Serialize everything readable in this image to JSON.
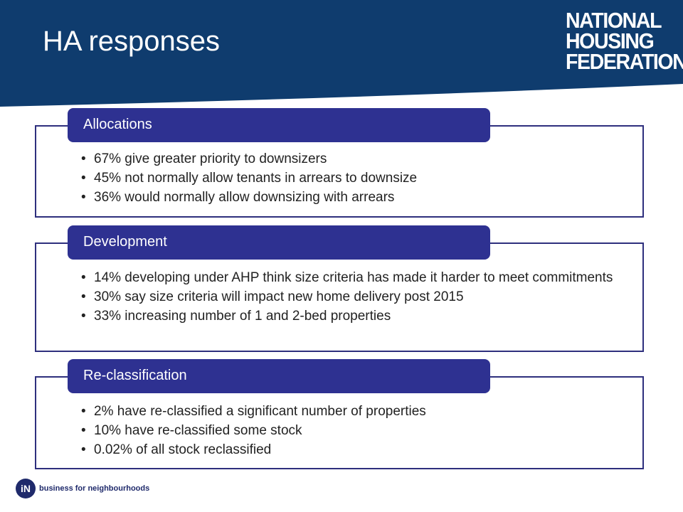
{
  "slide": {
    "title": "HA responses"
  },
  "logo": {
    "line1": "NATIONAL",
    "line2": "HOUSING",
    "line3": "FEDERATION"
  },
  "sections": [
    {
      "heading": "Allocations",
      "bullets": [
        "67% give greater priority to downsizers",
        "45% not normally allow tenants in arrears to downsize",
        "36% would normally allow downsizing with arrears"
      ]
    },
    {
      "heading": "Development",
      "bullets": [
        "14% developing under AHP think size criteria has made it harder to meet commitments",
        "30% say size criteria will impact new home delivery post 2015",
        "33% increasing number of 1 and 2-bed properties"
      ]
    },
    {
      "heading": "Re-classification",
      "bullets": [
        "2% have re-classified a significant number of properties",
        "10% have re-classified some stock",
        "0.02% of all stock reclassified"
      ]
    }
  ],
  "footer": {
    "icon_label": "iN",
    "tagline": "business for neighbourhoods"
  },
  "colors": {
    "header_bg": "#0f3c6e",
    "tab_bg": "#2e3191",
    "box_border": "#2e2f7d"
  }
}
